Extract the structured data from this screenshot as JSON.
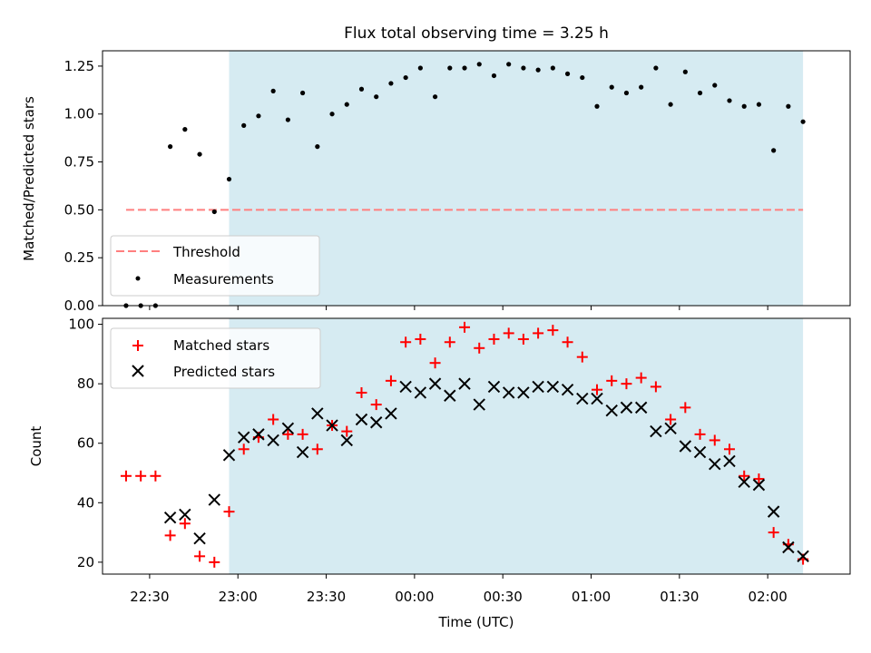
{
  "figure": {
    "title": "Flux total observing time = 3.25 h",
    "xlabel": "Time (UTC)"
  },
  "colors": {
    "observing_window": "#add8e6",
    "threshold": "#ff7f7f",
    "measurements": "#000000",
    "matched": "#ff0000",
    "predicted": "#000000"
  },
  "chart_data": [
    {
      "type": "scatter",
      "panel": "top",
      "ylabel": "Matched/Predicted stars",
      "x_unit": "minutes after 22:00 UTC",
      "xlim": [
        14,
        268
      ],
      "ylim": [
        0,
        1.33
      ],
      "yticks": [
        0,
        0.25,
        0.5,
        0.75,
        1.0,
        1.25
      ],
      "ytick_labels": [
        "0.00",
        "0.25",
        "0.50",
        "0.75",
        "1.00",
        "1.25"
      ],
      "legend_placement": "lower-left",
      "shaded_interval": [
        57,
        252
      ],
      "threshold": {
        "name": "Threshold",
        "y": 0.5,
        "x_range": [
          22,
          252
        ]
      },
      "series": [
        {
          "name": "Measurements",
          "x": [
            22,
            27,
            32,
            37,
            42,
            47,
            52,
            57,
            62,
            67,
            72,
            77,
            82,
            87,
            92,
            97,
            102,
            107,
            112,
            117,
            122,
            127,
            132,
            137,
            142,
            147,
            152,
            157,
            162,
            167,
            172,
            177,
            182,
            187,
            192,
            197,
            202,
            207,
            212,
            217,
            222,
            227,
            232,
            237,
            242,
            247,
            252
          ],
          "y": [
            0.0,
            0.0,
            0.0,
            0.83,
            0.92,
            0.79,
            0.49,
            0.66,
            0.94,
            0.99,
            1.12,
            0.97,
            1.11,
            0.83,
            1.0,
            1.05,
            1.13,
            1.09,
            1.16,
            1.19,
            1.24,
            1.09,
            1.24,
            1.24,
            1.26,
            1.2,
            1.26,
            1.24,
            1.23,
            1.24,
            1.21,
            1.19,
            1.04,
            1.14,
            1.11,
            1.14,
            1.24,
            1.05,
            1.22,
            1.11,
            1.15,
            1.07,
            1.04,
            1.05,
            0.81,
            1.04,
            0.96
          ]
        }
      ]
    },
    {
      "type": "scatter",
      "panel": "bottom",
      "ylabel": "Count",
      "x_unit": "minutes after 22:00 UTC",
      "xlim": [
        14,
        268
      ],
      "ylim": [
        16,
        102
      ],
      "yticks": [
        20,
        40,
        60,
        80,
        100
      ],
      "xticks": [
        30,
        60,
        90,
        120,
        150,
        180,
        210,
        240
      ],
      "xtick_labels": [
        "22:30",
        "23:00",
        "23:30",
        "00:00",
        "00:30",
        "01:00",
        "01:30",
        "02:00"
      ],
      "legend_placement": "upper-left",
      "shaded_interval": [
        57,
        252
      ],
      "series": [
        {
          "name": "Matched stars",
          "marker": "+",
          "x": [
            22,
            27,
            32,
            37,
            42,
            47,
            52,
            57,
            62,
            67,
            72,
            77,
            82,
            87,
            92,
            97,
            102,
            107,
            112,
            117,
            122,
            127,
            132,
            137,
            142,
            147,
            152,
            157,
            162,
            167,
            172,
            177,
            182,
            187,
            192,
            197,
            202,
            207,
            212,
            217,
            222,
            227,
            232,
            237,
            242,
            247,
            252
          ],
          "y": [
            49,
            49,
            49,
            29,
            33,
            22,
            20,
            37,
            58,
            62,
            68,
            63,
            63,
            58,
            66,
            64,
            77,
            73,
            81,
            94,
            95,
            87,
            94,
            99,
            92,
            95,
            97,
            95,
            97,
            98,
            94,
            89,
            78,
            81,
            80,
            82,
            79,
            68,
            72,
            63,
            61,
            58,
            49,
            48,
            30,
            26,
            21
          ]
        },
        {
          "name": "Predicted stars",
          "marker": "x",
          "x": [
            37,
            42,
            47,
            52,
            57,
            62,
            67,
            72,
            77,
            82,
            87,
            92,
            97,
            102,
            107,
            112,
            117,
            122,
            127,
            132,
            137,
            142,
            147,
            152,
            157,
            162,
            167,
            172,
            177,
            182,
            187,
            192,
            197,
            202,
            207,
            212,
            217,
            222,
            227,
            232,
            237,
            242,
            247,
            252
          ],
          "y": [
            35,
            36,
            28,
            41,
            56,
            62,
            63,
            61,
            65,
            57,
            70,
            66,
            61,
            68,
            67,
            70,
            79,
            77,
            80,
            76,
            80,
            73,
            79,
            77,
            77,
            79,
            79,
            78,
            75,
            75,
            71,
            72,
            72,
            64,
            65,
            59,
            57,
            53,
            54,
            47,
            46,
            37,
            25,
            22
          ]
        }
      ]
    }
  ]
}
